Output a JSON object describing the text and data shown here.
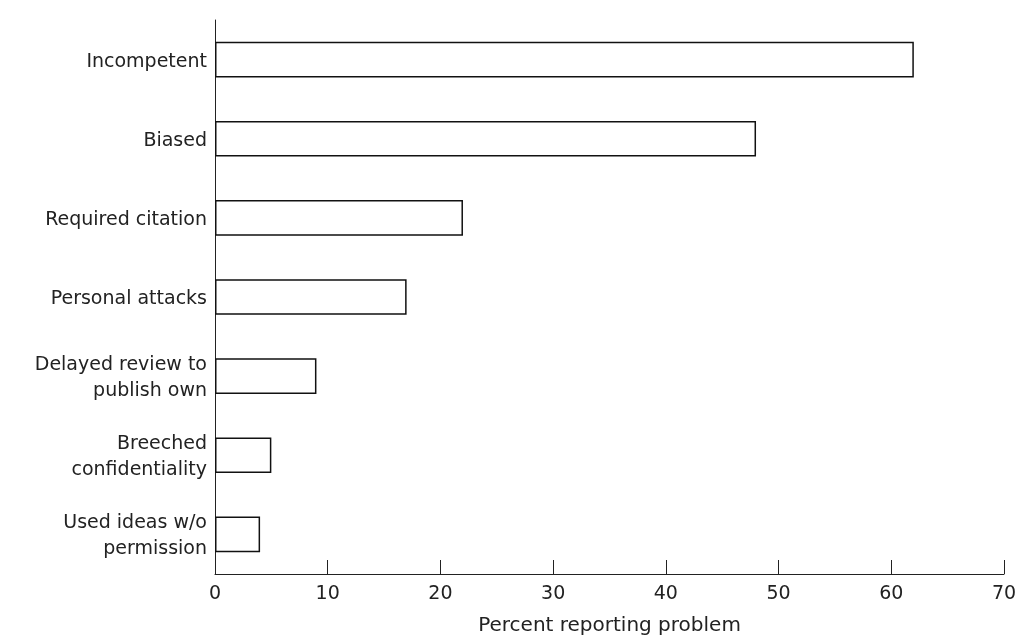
{
  "chart_data": {
    "type": "bar",
    "orientation": "horizontal",
    "xlabel": "Percent reporting problem",
    "categories": [
      "Incompetent",
      "Biased",
      "Required citation",
      "Personal attacks",
      "Delayed review to\npublish own",
      "Breeched\nconfidentiality",
      "Used ideas w/o\npermission"
    ],
    "values": [
      62,
      48,
      22,
      17,
      9,
      5,
      4
    ],
    "color": "#ffffff",
    "xlim": [
      0,
      70
    ],
    "xticks": [
      0,
      10,
      20,
      30,
      40,
      50,
      60,
      70
    ],
    "grid": false
  }
}
